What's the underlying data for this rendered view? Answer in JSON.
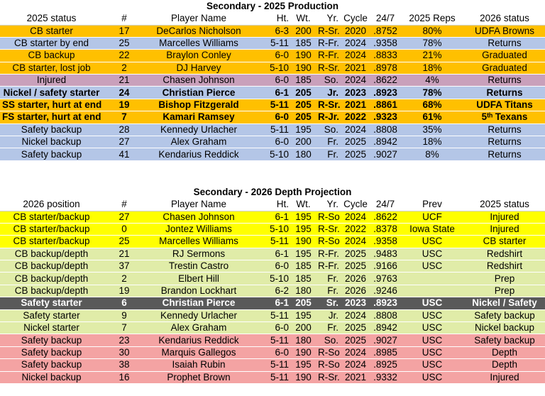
{
  "tables": [
    {
      "title": "Secondary - 2025 Production",
      "header": [
        "2025 status",
        "#",
        "Player Name",
        "Ht.",
        "Wt.",
        "Yr.",
        "Cycle",
        "24/7",
        "2025 Reps",
        "2026 status"
      ],
      "rows": [
        {
          "color": "#ffc000",
          "bold": false,
          "cells": [
            "CB starter",
            "17",
            "DeCarlos Nicholson",
            "6-3",
            "200",
            "R-Sr.",
            "2020",
            ".8752",
            "80%",
            "UDFA Browns"
          ]
        },
        {
          "color": "#b4c6e7",
          "bold": false,
          "cells": [
            "CB starter by end",
            "25",
            "Marcelles Williams",
            "5-11",
            "185",
            "R-Fr.",
            "2024",
            ".9358",
            "78%",
            "Returns"
          ]
        },
        {
          "color": "#ffc000",
          "bold": false,
          "cells": [
            "CB backup",
            "22",
            "Braylon Conley",
            "6-0",
            "190",
            "R-Fr.",
            "2024",
            ".8833",
            "21%",
            "Graduated"
          ]
        },
        {
          "color": "#ffc000",
          "bold": false,
          "cells": [
            "CB starter, lost job",
            "2",
            "DJ Harvey",
            "5-10",
            "190",
            "R-Sr.",
            "2021",
            ".8978",
            "18%",
            "Graduated"
          ]
        },
        {
          "color": "#c9a0bb",
          "bold": false,
          "cells": [
            "Injured",
            "21",
            "Chasen Johnson",
            "6-0",
            "185",
            "So.",
            "2024",
            ".8622",
            "4%",
            "Returns"
          ]
        },
        {
          "color": "#b4c6e7",
          "bold": true,
          "cells": [
            "Nickel / safety starter",
            "24",
            "Christian Pierce",
            "6-1",
            "205",
            "Jr.",
            "2023",
            ".8923",
            "78%",
            "Returns"
          ]
        },
        {
          "color": "#ffc000",
          "bold": true,
          "cells": [
            "SS starter, hurt at end",
            "19",
            "Bishop Fitzgerald",
            "5-11",
            "205",
            "R-Sr.",
            "2021",
            ".8861",
            "68%",
            "UDFA Titans"
          ]
        },
        {
          "color": "#ffc000",
          "bold": true,
          "cells": [
            "FS starter, hurt at end",
            "7",
            "Kamari Ramsey",
            "6-0",
            "205",
            "R-Jr.",
            "2022",
            ".9323",
            "61%",
            "5ᵗʰ Texans"
          ]
        },
        {
          "color": "#b4c6e7",
          "bold": false,
          "cells": [
            "Safety backup",
            "28",
            "Kennedy Urlacher",
            "5-11",
            "195",
            "So.",
            "2024",
            ".8808",
            "35%",
            "Returns"
          ]
        },
        {
          "color": "#b4c6e7",
          "bold": false,
          "cells": [
            "Nickel backup",
            "27",
            "Alex Graham",
            "6-0",
            "200",
            "Fr.",
            "2025",
            ".8942",
            "18%",
            "Returns"
          ]
        },
        {
          "color": "#b4c6e7",
          "bold": false,
          "cells": [
            "Safety backup",
            "41",
            "Kendarius Reddick",
            "5-10",
            "180",
            "Fr.",
            "2025",
            ".9027",
            "8%",
            "Returns"
          ]
        }
      ]
    },
    {
      "title": "Secondary - 2026 Depth Projection",
      "header": [
        "2026 position",
        "#",
        "Player Name",
        "Ht.",
        "Wt.",
        "Yr.",
        "Cycle",
        "24/7",
        "Prev",
        "2025 status"
      ],
      "rows": [
        {
          "color": "#ffff00",
          "bold": false,
          "cells": [
            "CB starter/backup",
            "27",
            "Chasen Johnson",
            "6-1",
            "195",
            "R-So.",
            "2024",
            ".8622",
            "UCF",
            "Injured"
          ]
        },
        {
          "color": "#ffff00",
          "bold": false,
          "cells": [
            "CB starter/backup",
            "0",
            "Jontez Williams",
            "5-10",
            "195",
            "R-Sr.",
            "2022",
            ".8378",
            "Iowa State",
            "Injured"
          ]
        },
        {
          "color": "#ffff00",
          "bold": false,
          "cells": [
            "CB starter/backup",
            "25",
            "Marcelles Williams",
            "5-11",
            "190",
            "R-So.",
            "2024",
            ".9358",
            "USC",
            "CB starter"
          ]
        },
        {
          "color": "#e0eca8",
          "bold": false,
          "cells": [
            "CB backup/depth",
            "21",
            "RJ Sermons",
            "6-1",
            "195",
            "R-Fr.",
            "2025",
            ".9483",
            "USC",
            "Redshirt"
          ]
        },
        {
          "color": "#e0eca8",
          "bold": false,
          "cells": [
            "CB backup/depth",
            "37",
            "Trestin Castro",
            "6-0",
            "185",
            "R-Fr.",
            "2025",
            ".9166",
            "USC",
            "Redshirt"
          ]
        },
        {
          "color": "#e0eca8",
          "bold": false,
          "cells": [
            "CB backup/depth",
            "2",
            "Elbert Hill",
            "5-10",
            "185",
            "Fr.",
            "2026",
            ".9763",
            null,
            "Prep"
          ]
        },
        {
          "color": "#e0eca8",
          "bold": false,
          "cells": [
            "CB backup/depth",
            "19",
            "Brandon Lockhart",
            "6-2",
            "180",
            "Fr.",
            "2026",
            ".9246",
            null,
            "Prep"
          ]
        },
        {
          "color": "#595959",
          "bold": true,
          "cells": [
            "Safety starter",
            "6",
            "Christian Pierce",
            "6-1",
            "205",
            "Sr.",
            "2023",
            ".8923",
            "USC",
            "Nickel / Safety"
          ]
        },
        {
          "color": "#e0eca8",
          "bold": false,
          "cells": [
            "Safety starter",
            "9",
            "Kennedy Urlacher",
            "5-11",
            "195",
            "Jr.",
            "2024",
            ".8808",
            "USC",
            "Safety backup"
          ]
        },
        {
          "color": "#e0eca8",
          "bold": false,
          "cells": [
            "Nickel starter",
            "7",
            "Alex Graham",
            "6-0",
            "200",
            "Fr.",
            "2025",
            ".8942",
            "USC",
            "Nickel backup"
          ]
        },
        {
          "color": "#f4a3a3",
          "bold": false,
          "cells": [
            "Safety backup",
            "23",
            "Kendarius Reddick",
            "5-11",
            "180",
            "So.",
            "2025",
            ".9027",
            "USC",
            "Safety backup"
          ]
        },
        {
          "color": "#f4a3a3",
          "bold": false,
          "cells": [
            "Safety backup",
            "30",
            "Marquis Gallegos",
            "6-0",
            "190",
            "R-So.",
            "2024",
            ".8985",
            "USC",
            "Depth"
          ]
        },
        {
          "color": "#f4a3a3",
          "bold": false,
          "cells": [
            "Safety backup",
            "38",
            "Isaiah Rubin",
            "5-11",
            "195",
            "R-So.",
            "2024",
            ".8925",
            "USC",
            "Depth"
          ]
        },
        {
          "color": "#f4a3a3",
          "bold": false,
          "cells": [
            "Nickel backup",
            "16",
            "Prophet Brown",
            "5-11",
            "190",
            "R-Sr.",
            "2021",
            ".9332",
            "USC",
            "Injured"
          ]
        }
      ]
    }
  ]
}
